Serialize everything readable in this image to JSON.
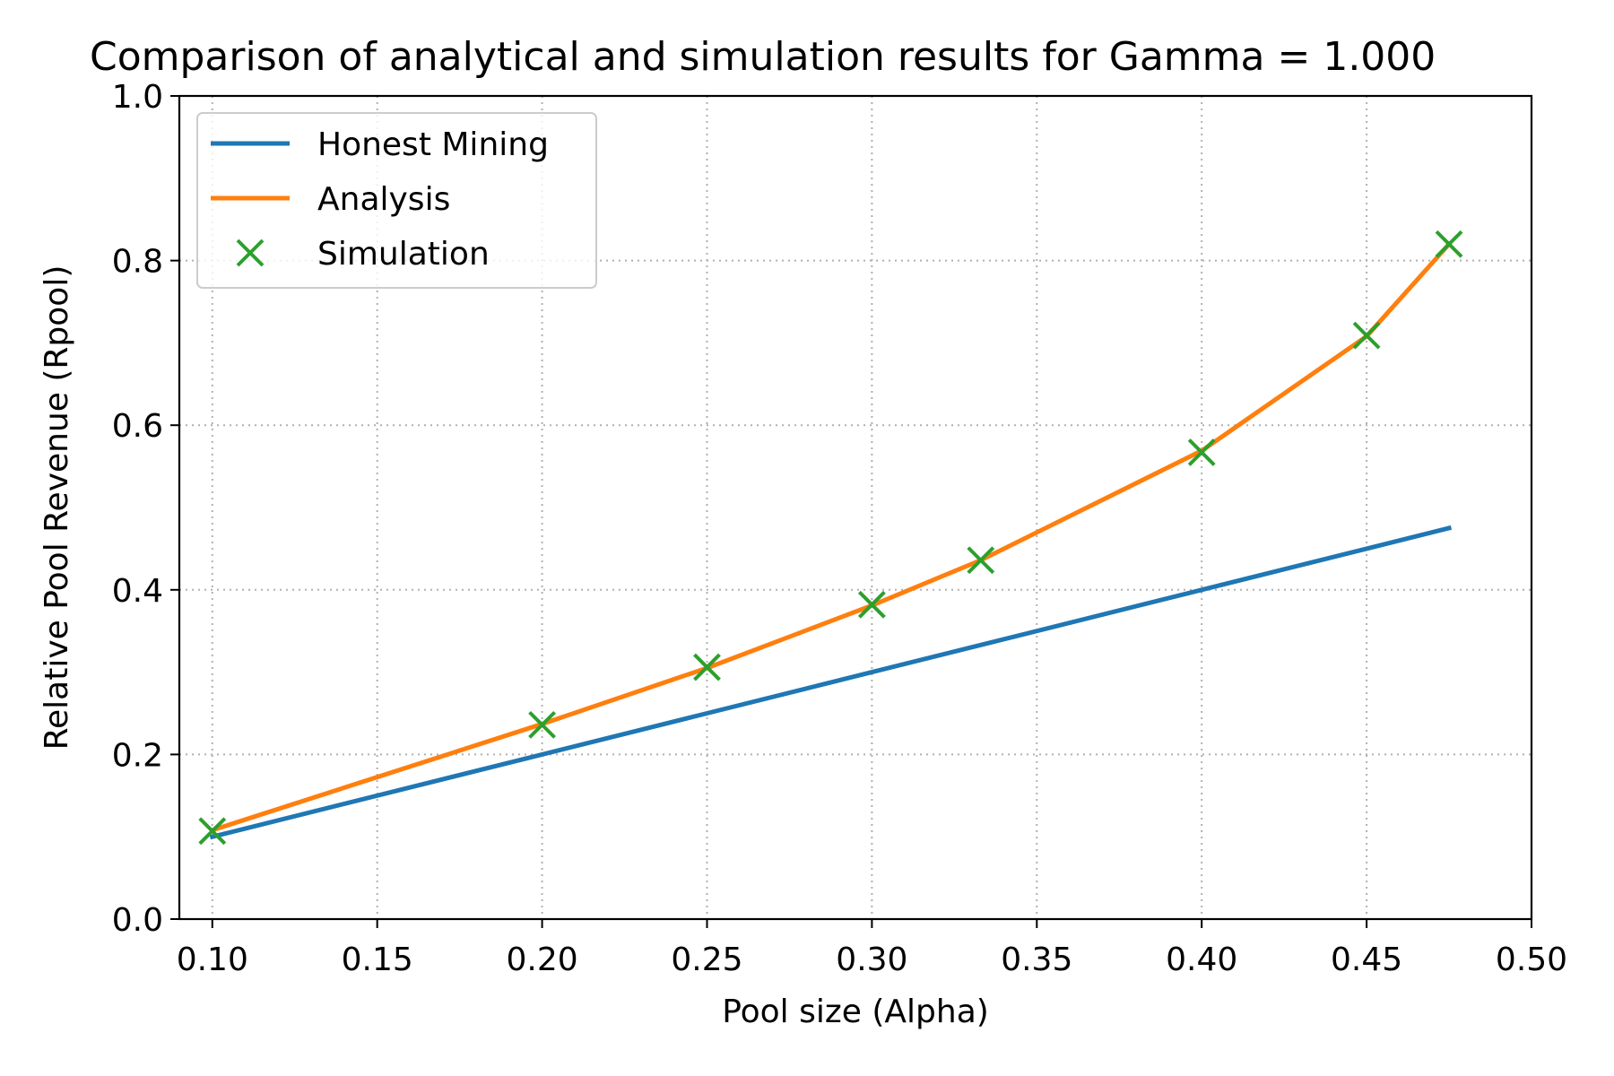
{
  "chart_data": {
    "type": "line",
    "title": "Comparison of analytical and simulation results for Gamma = 1.000",
    "xlabel": "Pool size (Alpha)",
    "ylabel": "Relative Pool Revenue (Rpool)",
    "xlim": [
      0.09,
      0.5
    ],
    "ylim": [
      0.0,
      1.0
    ],
    "xticks": [
      "0.10",
      "0.15",
      "0.20",
      "0.25",
      "0.30",
      "0.35",
      "0.40",
      "0.45",
      "0.50"
    ],
    "yticks": [
      "0.0",
      "0.2",
      "0.4",
      "0.6",
      "0.8",
      "1.0"
    ],
    "grid": true,
    "legend_position": "top-left",
    "series": [
      {
        "name": "Honest Mining",
        "style": "line",
        "color": "#1f77b4",
        "x": [
          0.1,
          0.2,
          0.25,
          0.3,
          0.333,
          0.4,
          0.45,
          0.475
        ],
        "y": [
          0.1,
          0.2,
          0.25,
          0.3,
          0.333,
          0.4,
          0.45,
          0.475
        ]
      },
      {
        "name": "Analysis",
        "style": "line",
        "color": "#ff7f0e",
        "x": [
          0.1,
          0.2,
          0.25,
          0.3,
          0.333,
          0.4,
          0.45,
          0.475
        ],
        "y": [
          0.108,
          0.237,
          0.305,
          0.381,
          0.436,
          0.569,
          0.708,
          0.82
        ]
      },
      {
        "name": "Simulation",
        "style": "marker-x",
        "color": "#2ca02c",
        "x": [
          0.1,
          0.2,
          0.25,
          0.3,
          0.333,
          0.4,
          0.45,
          0.475
        ],
        "y": [
          0.107,
          0.236,
          0.306,
          0.382,
          0.436,
          0.567,
          0.709,
          0.82
        ]
      }
    ]
  }
}
